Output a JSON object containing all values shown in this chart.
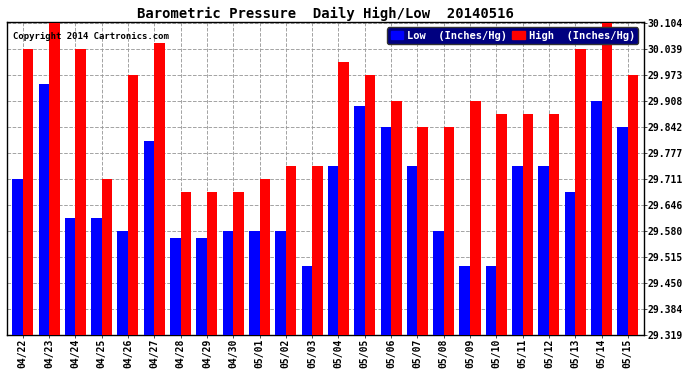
{
  "title": "Barometric Pressure  Daily High/Low  20140516",
  "copyright": "Copyright 2014 Cartronics.com",
  "legend_low": "Low  (Inches/Hg)",
  "legend_high": "High  (Inches/Hg)",
  "dates": [
    "04/22",
    "04/23",
    "04/24",
    "04/25",
    "04/26",
    "04/27",
    "04/28",
    "04/29",
    "04/30",
    "05/01",
    "05/02",
    "05/03",
    "05/04",
    "05/05",
    "05/06",
    "05/07",
    "05/08",
    "05/09",
    "05/10",
    "05/11",
    "05/12",
    "05/13",
    "05/14",
    "05/15"
  ],
  "low_values": [
    29.711,
    29.951,
    29.612,
    29.612,
    29.58,
    29.808,
    29.563,
    29.563,
    29.58,
    29.58,
    29.58,
    29.492,
    29.744,
    29.896,
    29.842,
    29.744,
    29.58,
    29.492,
    29.492,
    29.744,
    29.744,
    29.678,
    29.908,
    29.842
  ],
  "high_values": [
    30.039,
    30.104,
    30.039,
    29.711,
    29.973,
    30.055,
    29.678,
    29.678,
    29.678,
    29.711,
    29.744,
    29.744,
    30.006,
    29.973,
    29.908,
    29.842,
    29.842,
    29.908,
    29.875,
    29.875,
    29.875,
    30.039,
    30.104,
    29.973
  ],
  "ylim_min": 29.319,
  "ylim_max": 30.104,
  "yticks": [
    29.319,
    29.384,
    29.45,
    29.515,
    29.58,
    29.646,
    29.711,
    29.777,
    29.842,
    29.908,
    29.973,
    30.039,
    30.104
  ],
  "bar_width": 0.4,
  "low_color": "#0000FF",
  "high_color": "#FF0000",
  "bg_color": "#FFFFFF",
  "grid_color": "#999999",
  "title_fontsize": 10,
  "tick_fontsize": 7,
  "copyright_fontsize": 6.5,
  "legend_fontsize": 7.5
}
